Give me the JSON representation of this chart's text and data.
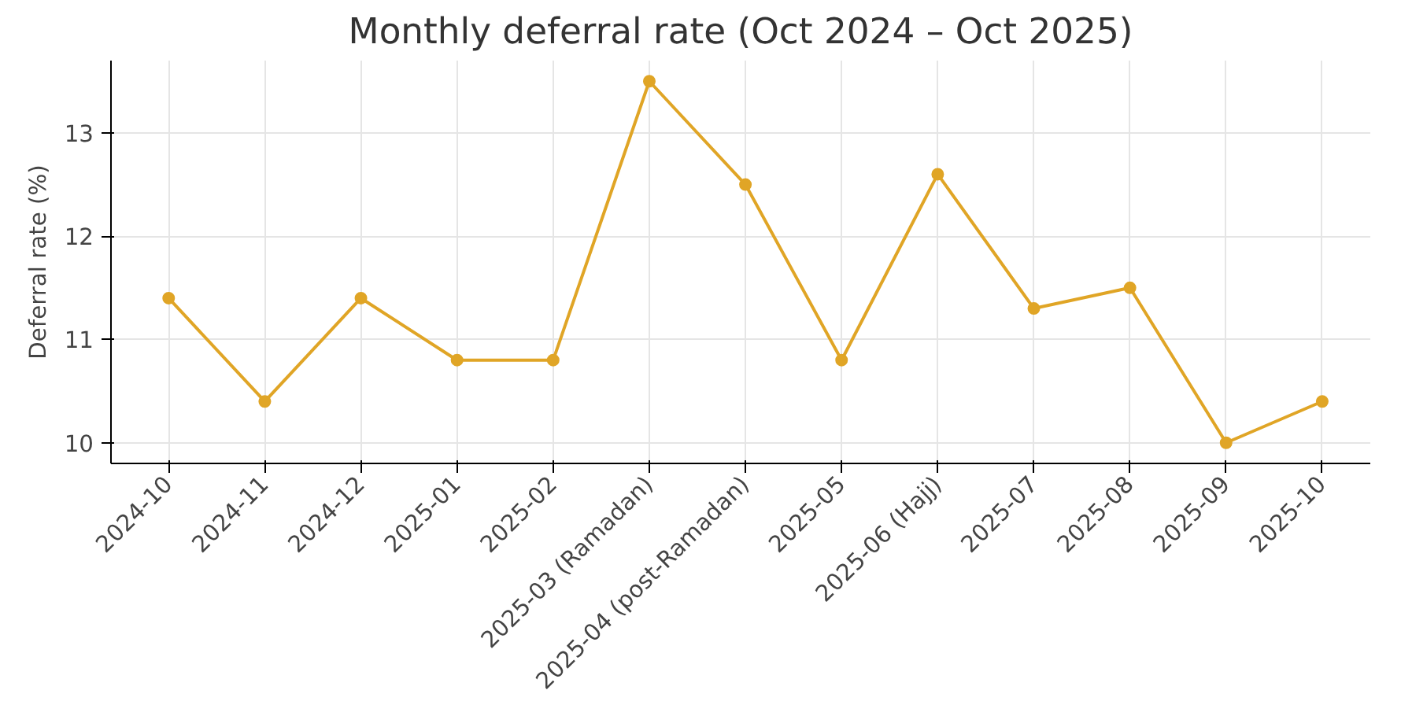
{
  "chart_data": {
    "type": "line",
    "title": "Monthly deferral rate (Oct 2024 – Oct 2025)",
    "ylabel": "Deferral rate (%)",
    "categories": [
      "2024-10",
      "2024-11",
      "2024-12",
      "2025-01",
      "2025-02",
      "2025-03 (Ramadan)",
      "2025-04 (post-Ramadan)",
      "2025-05",
      "2025-06 (Hajj)",
      "2025-07",
      "2025-08",
      "2025-09",
      "2025-10"
    ],
    "series": [
      {
        "color": "#e0a526",
        "values": [
          11.4,
          10.4,
          11.4,
          10.8,
          10.8,
          13.5,
          12.5,
          10.8,
          12.6,
          11.3,
          11.5,
          10.0,
          10.4
        ]
      }
    ],
    "ylim": [
      9.8,
      13.7
    ],
    "yticks": [
      10,
      11,
      12,
      13
    ],
    "grid": true,
    "marker": "circle",
    "line_style": "solid"
  }
}
